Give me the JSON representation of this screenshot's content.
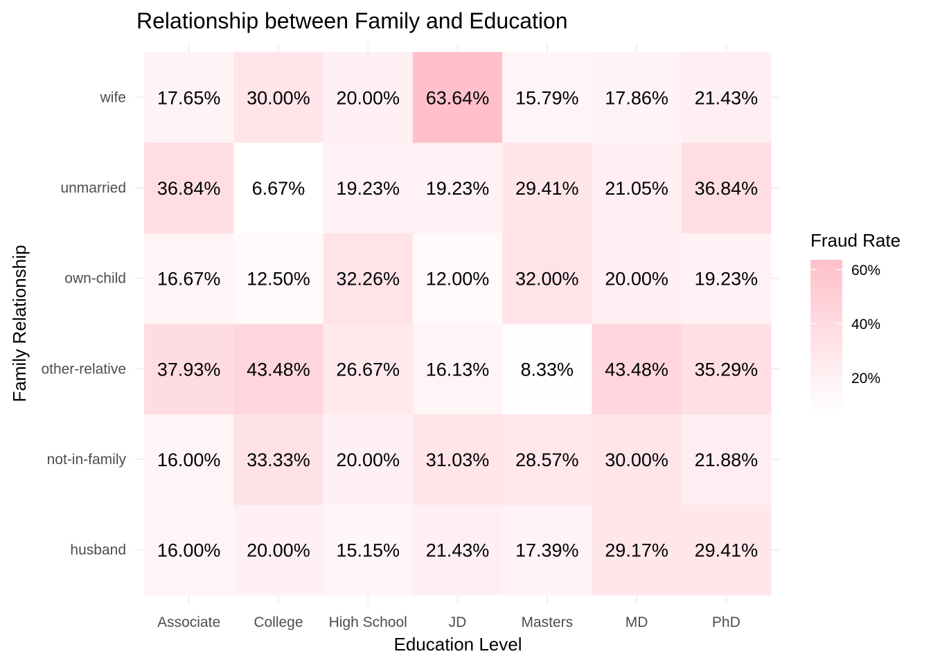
{
  "chart_data": {
    "type": "heatmap",
    "title": "Relationship between Family and Education",
    "xlabel": "Education Level",
    "ylabel": "Family Relationship",
    "x_categories": [
      "Associate",
      "College",
      "High School",
      "JD",
      "Masters",
      "MD",
      "PhD"
    ],
    "y_categories": [
      "husband",
      "not-in-family",
      "other-relative",
      "own-child",
      "unmarried",
      "wife"
    ],
    "values": [
      [
        16.0,
        20.0,
        15.15,
        21.43,
        17.39,
        29.17,
        29.41
      ],
      [
        16.0,
        33.33,
        20.0,
        31.03,
        28.57,
        30.0,
        21.88
      ],
      [
        37.93,
        43.48,
        26.67,
        16.13,
        8.33,
        43.48,
        35.29
      ],
      [
        16.67,
        12.5,
        32.26,
        12.0,
        32.0,
        20.0,
        19.23
      ],
      [
        36.84,
        6.67,
        19.23,
        19.23,
        29.41,
        21.05,
        36.84
      ],
      [
        17.65,
        30.0,
        20.0,
        63.64,
        15.79,
        17.86,
        21.43
      ]
    ],
    "value_labels": [
      [
        "16.00%",
        "20.00%",
        "15.15%",
        "21.43%",
        "17.39%",
        "29.17%",
        "29.41%"
      ],
      [
        "16.00%",
        "33.33%",
        "20.00%",
        "31.03%",
        "28.57%",
        "30.00%",
        "21.88%"
      ],
      [
        "37.93%",
        "43.48%",
        "26.67%",
        "16.13%",
        "8.33%",
        "43.48%",
        "35.29%"
      ],
      [
        "16.67%",
        "12.50%",
        "32.26%",
        "12.00%",
        "32.00%",
        "20.00%",
        "19.23%"
      ],
      [
        "36.84%",
        "6.67%",
        "19.23%",
        "19.23%",
        "29.41%",
        "21.05%",
        "36.84%"
      ],
      [
        "17.65%",
        "30.00%",
        "20.00%",
        "63.64%",
        "15.79%",
        "17.86%",
        "21.43%"
      ]
    ],
    "color_scale": {
      "low": "#ffffff",
      "high": "#ffc0cb",
      "min": 6.67,
      "max": 63.64
    },
    "legend": {
      "title": "Fraud Rate",
      "position": "right",
      "breaks": [
        20,
        40,
        60
      ],
      "labels": [
        "20%",
        "40%",
        "60%"
      ]
    },
    "grid": true
  }
}
